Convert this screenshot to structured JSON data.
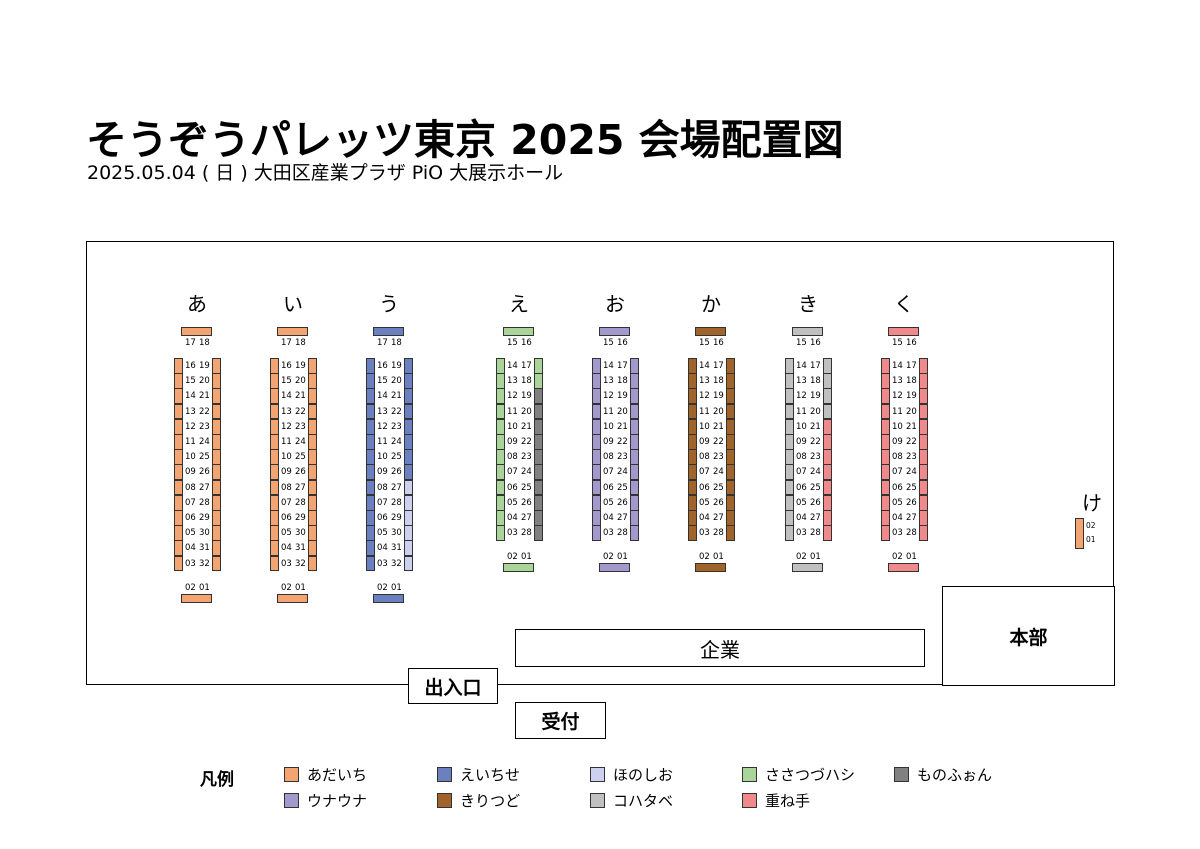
{
  "title": "そうぞうパレッツ東京 2025 会場配置図",
  "subtitle": "2025.05.04 ( 日 ) 大田区産業プラザ PiO 大展示ホール",
  "labels": {
    "honbu": "本部",
    "kigyo": "企業",
    "entrance": "出入口",
    "reception": "受付",
    "legend_title": "凡例"
  },
  "legend": [
    {
      "name": "あだいち",
      "color": "#F4A470"
    },
    {
      "name": "えいちせ",
      "color": "#6A80C0"
    },
    {
      "name": "ほのしお",
      "color": "#CDD0EE"
    },
    {
      "name": "ささつづハシ",
      "color": "#A9D59A"
    },
    {
      "name": "ものふぉん",
      "color": "#808080"
    },
    {
      "name": "ウナウナ",
      "color": "#A399CC"
    },
    {
      "name": "きりつど",
      "color": "#A0632A"
    },
    {
      "name": "コハタベ",
      "color": "#C0C0C0"
    },
    {
      "name": "重ね手",
      "color": "#F08A8A"
    }
  ],
  "blocks": [
    {
      "label": "あ",
      "variant": "long",
      "fill": "#F4A470",
      "left_fills": [
        "#F4A470"
      ],
      "right_fills": [
        "#F4A470"
      ]
    },
    {
      "label": "い",
      "variant": "long",
      "fill": "#F4A470",
      "left_fills": [
        "#F4A470"
      ],
      "right_fills": [
        "#F4A470"
      ]
    },
    {
      "label": "う",
      "variant": "long",
      "fill": "#6A80C0",
      "left_fills": [
        "#6A80C0"
      ],
      "right_fills": [
        "#6A80C0",
        "#6A80C0",
        "#6A80C0",
        "#6A80C0",
        "#6A80C0",
        "#6A80C0",
        "#6A80C0",
        "#6A80C0",
        "#CDD0EE",
        "#CDD0EE",
        "#CDD0EE",
        "#CDD0EE",
        "#CDD0EE",
        "#CDD0EE"
      ]
    },
    {
      "label": "え",
      "variant": "short",
      "fill": "#A9D59A",
      "left_fills": [
        "#A9D59A"
      ],
      "right_fills": [
        "#A9D59A",
        "#A9D59A",
        "#808080",
        "#808080",
        "#808080",
        "#808080",
        "#808080",
        "#808080",
        "#808080",
        "#808080",
        "#808080",
        "#808080"
      ]
    },
    {
      "label": "お",
      "variant": "short",
      "fill": "#A399CC",
      "left_fills": [
        "#A399CC"
      ],
      "right_fills": [
        "#A399CC"
      ]
    },
    {
      "label": "か",
      "variant": "short",
      "fill": "#A0632A",
      "left_fills": [
        "#A0632A"
      ],
      "right_fills": [
        "#A0632A"
      ]
    },
    {
      "label": "き",
      "variant": "short",
      "fill": "#C0C0C0",
      "left_fills": [
        "#C0C0C0"
      ],
      "right_fills": [
        "#C0C0C0",
        "#C0C0C0",
        "#C0C0C0",
        "#C0C0C0",
        "#F08A8A",
        "#F08A8A",
        "#F08A8A",
        "#F08A8A",
        "#F08A8A",
        "#F08A8A",
        "#F08A8A",
        "#F08A8A"
      ]
    },
    {
      "label": "く",
      "variant": "short",
      "fill": "#F08A8A",
      "left_fills": [
        "#F08A8A"
      ],
      "right_fills": [
        "#F08A8A"
      ]
    }
  ],
  "numbering": {
    "long": {
      "top": [
        "17",
        "18"
      ],
      "left": [
        "16",
        "15",
        "14",
        "13",
        "12",
        "11",
        "10",
        "09",
        "08",
        "07",
        "06",
        "05",
        "04",
        "03"
      ],
      "right": [
        "19",
        "20",
        "21",
        "22",
        "23",
        "24",
        "25",
        "26",
        "27",
        "28",
        "29",
        "30",
        "31",
        "32"
      ],
      "bottom": [
        "02",
        "01"
      ]
    },
    "short": {
      "top": [
        "15",
        "16"
      ],
      "left": [
        "14",
        "13",
        "12",
        "11",
        "10",
        "09",
        "08",
        "07",
        "06",
        "05",
        "04",
        "03"
      ],
      "right": [
        "17",
        "18",
        "19",
        "20",
        "21",
        "22",
        "23",
        "24",
        "25",
        "26",
        "27",
        "28"
      ],
      "bottom": [
        "02",
        "01"
      ]
    }
  },
  "ke_block": {
    "label": "け",
    "fill": "#F4A470",
    "numbers": [
      "02",
      "01"
    ]
  }
}
